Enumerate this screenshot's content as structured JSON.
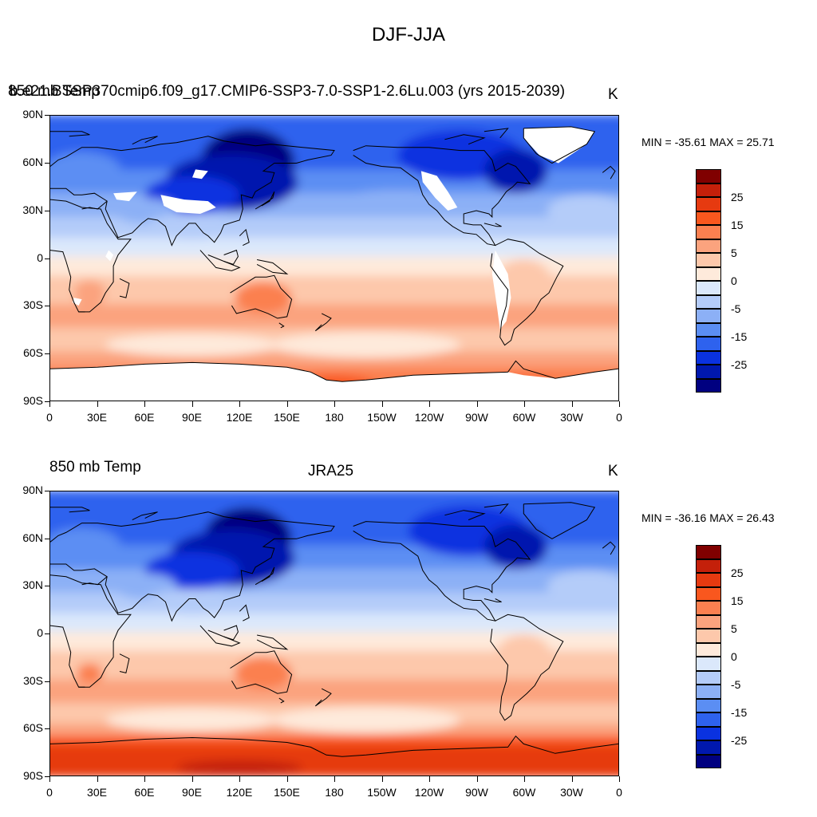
{
  "figure": {
    "title": "DJF-JJA",
    "lat_labels": [
      "90N",
      "60N",
      "30N",
      "0",
      "30S",
      "60S",
      "90S"
    ],
    "lon_labels": [
      "0",
      "30E",
      "60E",
      "90E",
      "120E",
      "150E",
      "180",
      "150W",
      "120W",
      "90W",
      "60W",
      "30W",
      "0"
    ],
    "colorbar": {
      "labels": [
        "25",
        "15",
        "5",
        "0",
        "-5",
        "-15",
        "-25"
      ],
      "colors": [
        "#800000",
        "#c4200a",
        "#e63a10",
        "#f9571e",
        "#fb8050",
        "#fba37e",
        "#fdc8ab",
        "#feeadb",
        "#dbe8fb",
        "#b4ccf9",
        "#8cb0f6",
        "#5b8ef3",
        "#2e62ee",
        "#0a32e0",
        "#0018ae",
        "#000080"
      ]
    }
  },
  "panels": [
    {
      "left_title": "850 mb Temp",
      "center_title": "b.e21.BSSP370cmip6.f09_g17.CMIP6-SSP3-7.0-SSP1-2.6Lu.003 (yrs 2015-2039)",
      "right_title": "K",
      "minmax": "MIN = -35.61 MAX =  25.71",
      "min": -35.61,
      "max": 25.71,
      "has_missing": true
    },
    {
      "left_title": "850 mb Temp",
      "center_title": "JRA25",
      "right_title": "K",
      "minmax": "MIN = -36.16 MAX =  26.43",
      "min": -36.16,
      "max": 26.43,
      "has_missing": false
    }
  ]
}
